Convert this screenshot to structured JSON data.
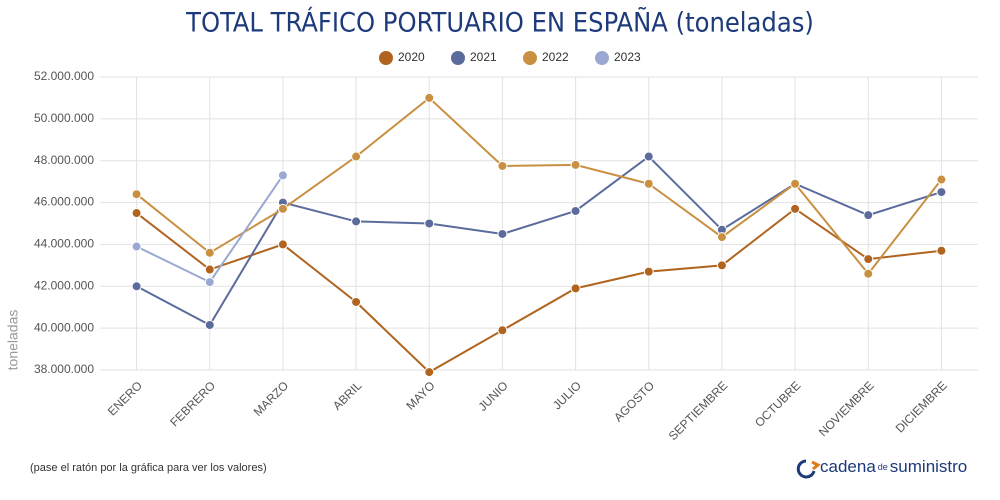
{
  "chart_data": {
    "type": "line",
    "title": "TOTAL TRÁFICO PORTUARIO EN ESPAÑA (toneladas)",
    "y_label": "toneladas",
    "note": "(pase el ratón por la gráfica para ver los valores)",
    "brand": [
      "cadena",
      "de",
      "suministro"
    ],
    "categories": [
      "ENERO",
      "FEBRERO",
      "MARZO",
      "ABRIL",
      "MAYO",
      "JUNIO",
      "JULIO",
      "AGOSTO",
      "SEPTIEMBRE",
      "OCTUBRE",
      "NOVIEMBRE",
      "DICIEMBRE"
    ],
    "series": [
      {
        "name": "2020",
        "color": "#b0641f",
        "values": [
          45500000,
          42800000,
          44000000,
          41250000,
          37900000,
          39900000,
          41900000,
          42700000,
          43000000,
          45700000,
          43300000,
          43700000
        ]
      },
      {
        "name": "2021",
        "color": "#5b6c9c",
        "values": [
          42000000,
          40150000,
          46000000,
          45100000,
          45000000,
          44500000,
          45600000,
          48200000,
          44700000,
          46900000,
          45400000,
          46500000
        ]
      },
      {
        "name": "2022",
        "color": "#c99042",
        "values": [
          46400000,
          43600000,
          45700000,
          48200000,
          51000000,
          47750000,
          47800000,
          46900000,
          44350000,
          46900000,
          42600000,
          47100000
        ]
      },
      {
        "name": "2023",
        "color": "#9ba9d2",
        "values": [
          43900000,
          42200000,
          47300000,
          null,
          null,
          null,
          null,
          null,
          null,
          null,
          null,
          null
        ]
      }
    ],
    "ylim": [
      38000000,
      52000000
    ],
    "yticks": [
      {
        "value": 38000000,
        "label": "38.000.000"
      },
      {
        "value": 40000000,
        "label": "40.000.000"
      },
      {
        "value": 42000000,
        "label": "42.000.000"
      },
      {
        "value": 44000000,
        "label": "44.000.000"
      },
      {
        "value": 46000000,
        "label": "46.000.000"
      },
      {
        "value": 48000000,
        "label": "48.000.000"
      },
      {
        "value": 50000000,
        "label": "50.000.000"
      },
      {
        "value": 52000000,
        "label": "52.000.000"
      }
    ],
    "grid": true
  }
}
